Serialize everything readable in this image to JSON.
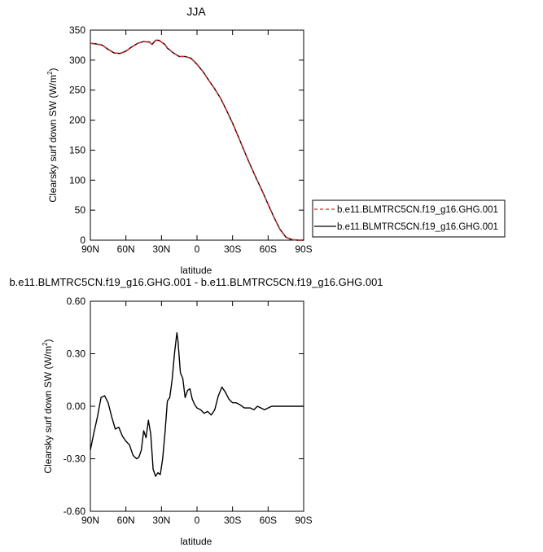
{
  "chart_data": [
    {
      "type": "line",
      "title": "JJA",
      "xlabel": "latitude",
      "ylabel": "Clearsky surf down SW (W/m²)",
      "ylabel_main": "Clearsky surf down SW (W/m",
      "ylabel_sup": "2",
      "ylabel_end": ")",
      "xlim": [
        90,
        -90
      ],
      "ylim": [
        0,
        350
      ],
      "x_ticks": [
        {
          "v": 90,
          "label": "90N"
        },
        {
          "v": 60,
          "label": "60N"
        },
        {
          "v": 30,
          "label": "30N"
        },
        {
          "v": 0,
          "label": "0"
        },
        {
          "v": -30,
          "label": "30S"
        },
        {
          "v": -60,
          "label": "60S"
        },
        {
          "v": -90,
          "label": "90S"
        }
      ],
      "y_ticks": [
        {
          "v": 0,
          "label": "0"
        },
        {
          "v": 50,
          "label": "50"
        },
        {
          "v": 100,
          "label": "100"
        },
        {
          "v": 150,
          "label": "150"
        },
        {
          "v": 200,
          "label": "200"
        },
        {
          "v": 250,
          "label": "250"
        },
        {
          "v": 300,
          "label": "300"
        },
        {
          "v": 350,
          "label": "350"
        }
      ],
      "grid": false,
      "legend": "right",
      "series": [
        {
          "name": "b.e11.BLMTRC5CN.f19_g16.GHG.001",
          "color": "#d62020",
          "dash": true,
          "x": [
            90,
            85,
            80,
            75,
            70,
            65,
            60,
            55,
            50,
            45,
            40,
            38,
            35,
            32,
            30,
            27,
            25,
            20,
            15,
            10,
            5,
            0,
            -5,
            -10,
            -15,
            -20,
            -25,
            -30,
            -35,
            -40,
            -45,
            -50,
            -55,
            -60,
            -65,
            -70,
            -75,
            -80,
            -85,
            -90
          ],
          "y": [
            328,
            327,
            325,
            318,
            312,
            311,
            315,
            322,
            328,
            331,
            330,
            326,
            333,
            333,
            330,
            326,
            320,
            312,
            306,
            306,
            303,
            293,
            281,
            266,
            252,
            236,
            216,
            195,
            172,
            148,
            125,
            103,
            82,
            60,
            38,
            18,
            5,
            1,
            0,
            0
          ]
        },
        {
          "name": "b.e11.BLMTRC5CN.f19_g16.GHG.001",
          "color": "#000000",
          "dash": false,
          "x": [
            90,
            85,
            80,
            75,
            70,
            65,
            60,
            55,
            50,
            45,
            40,
            38,
            35,
            32,
            30,
            27,
            25,
            20,
            15,
            10,
            5,
            0,
            -5,
            -10,
            -15,
            -20,
            -25,
            -30,
            -35,
            -40,
            -45,
            -50,
            -55,
            -60,
            -65,
            -70,
            -75,
            -80,
            -85,
            -90
          ],
          "y": [
            328,
            327,
            325,
            318,
            312,
            311,
            315,
            322,
            328,
            331,
            330,
            326,
            333,
            333,
            330,
            326,
            320,
            312,
            306,
            306,
            303,
            293,
            281,
            266,
            252,
            236,
            216,
            195,
            172,
            148,
            125,
            103,
            82,
            60,
            38,
            18,
            5,
            1,
            0,
            0
          ]
        }
      ]
    },
    {
      "type": "line",
      "title": "b.e11.BLMTRC5CN.f19_g16.GHG.001 - b.e11.BLMTRC5CN.f19_g16.GHG.001",
      "xlabel": "latitude",
      "ylabel": "Clearsky surf down SW (W/m²)",
      "ylabel_main": "Clearsky surf down SW (W/m",
      "ylabel_sup": "2",
      "ylabel_end": ")",
      "xlim": [
        90,
        -90
      ],
      "ylim": [
        -0.6,
        0.6
      ],
      "x_ticks": [
        {
          "v": 90,
          "label": "90N"
        },
        {
          "v": 60,
          "label": "60N"
        },
        {
          "v": 30,
          "label": "30N"
        },
        {
          "v": 0,
          "label": "0"
        },
        {
          "v": -30,
          "label": "30S"
        },
        {
          "v": -60,
          "label": "60S"
        },
        {
          "v": -90,
          "label": "90S"
        }
      ],
      "y_ticks": [
        {
          "v": -0.6,
          "label": "-0.60"
        },
        {
          "v": -0.3,
          "label": "-0.30"
        },
        {
          "v": 0,
          "label": "0.00"
        },
        {
          "v": 0.3,
          "label": "0.30"
        },
        {
          "v": 0.6,
          "label": "0.60"
        }
      ],
      "grid": false,
      "series": [
        {
          "color": "#000000",
          "dash": false,
          "x": [
            90,
            87,
            84,
            81,
            78,
            75,
            72,
            69,
            66,
            63,
            60,
            57,
            54,
            51,
            49,
            47,
            45,
            43,
            41,
            39,
            37,
            35,
            33,
            31,
            29,
            27,
            25,
            23,
            21,
            19,
            17,
            16,
            14,
            12,
            10,
            8,
            6,
            4,
            2,
            0,
            -3,
            -6,
            -9,
            -12,
            -15,
            -18,
            -21,
            -24,
            -27,
            -30,
            -33,
            -36,
            -40,
            -45,
            -48,
            -51,
            -54,
            -57,
            -60,
            -63,
            -66,
            -70,
            -75,
            -80,
            -85,
            -90
          ],
          "y": [
            -0.25,
            -0.15,
            -0.06,
            0.05,
            0.06,
            0.02,
            -0.06,
            -0.13,
            -0.12,
            -0.17,
            -0.2,
            -0.22,
            -0.28,
            -0.3,
            -0.29,
            -0.25,
            -0.14,
            -0.18,
            -0.08,
            -0.16,
            -0.36,
            -0.4,
            -0.38,
            -0.39,
            -0.3,
            -0.15,
            0.03,
            0.05,
            0.15,
            0.3,
            0.42,
            0.37,
            0.19,
            0.16,
            0.05,
            0.09,
            0.1,
            0.04,
            0.01,
            -0.01,
            -0.02,
            -0.04,
            -0.03,
            -0.05,
            -0.02,
            0.06,
            0.11,
            0.08,
            0.04,
            0.02,
            0.02,
            0.01,
            -0.01,
            -0.01,
            -0.02,
            0.0,
            -0.01,
            -0.02,
            -0.01,
            0.0,
            0.0,
            0.0,
            0.0,
            0.0,
            0.0,
            0.0
          ]
        }
      ]
    }
  ]
}
